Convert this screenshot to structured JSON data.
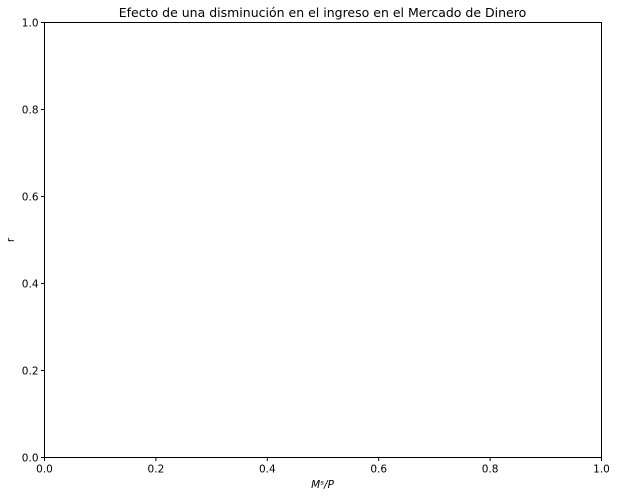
{
  "chart_data": {
    "type": "line",
    "title": "Efecto de una disminución en el ingreso en el Mercado de Dinero",
    "xlabel": "Mˢ/P",
    "ylabel": "r",
    "xlim": [
      0,
      1
    ],
    "ylim": [
      0,
      1
    ],
    "xticks": [
      "0.0",
      "0.2",
      "0.4",
      "0.6",
      "0.8",
      "1.0"
    ],
    "yticks": [
      "0.0",
      "0.2",
      "0.4",
      "0.6",
      "0.8",
      "1.0"
    ],
    "grid": false,
    "series": []
  }
}
